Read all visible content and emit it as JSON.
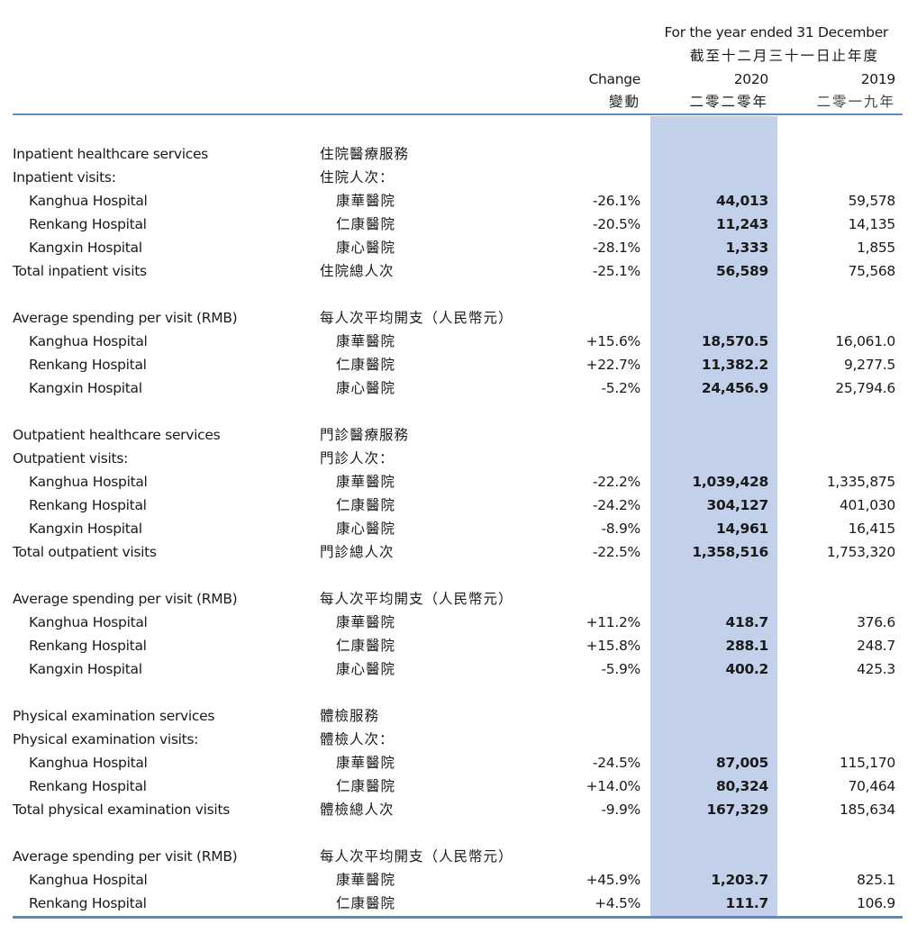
{
  "header": {
    "period_en": "For the year ended 31 December",
    "period_zh": "截至十二月三十一日止年度",
    "change_en": "Change",
    "change_zh": "變動",
    "year1_en": "2020",
    "year1_zh": "二零二零年",
    "year2_en": "2019",
    "year2_zh": "二零一九年"
  },
  "colors": {
    "highlight_column": "#c3d0ea",
    "rule": "#5b8ac4"
  },
  "rows": [
    {
      "en": "Inpatient healthcare services",
      "zh": "住院醫療服務",
      "type": "section"
    },
    {
      "en": "Inpatient visits:",
      "zh": "住院人次："
    },
    {
      "en": "Kanghua Hospital",
      "zh": "康華醫院",
      "change": "-26.1%",
      "y2020": "44,013",
      "y2019": "59,578",
      "indent": true
    },
    {
      "en": "Renkang Hospital",
      "zh": "仁康醫院",
      "change": "-20.5%",
      "y2020": "11,243",
      "y2019": "14,135",
      "indent": true
    },
    {
      "en": "Kangxin Hospital",
      "zh": "康心醫院",
      "change": "-28.1%",
      "y2020": "1,333",
      "y2019": "1,855",
      "indent": true
    },
    {
      "en": "Total inpatient visits",
      "zh": "住院總人次",
      "change": "-25.1%",
      "y2020": "56,589",
      "y2019": "75,568"
    },
    {
      "type": "blank"
    },
    {
      "en": "Average spending per visit (RMB)",
      "zh": "每人次平均開支（人民幣元）"
    },
    {
      "en": "Kanghua Hospital",
      "zh": "康華醫院",
      "change": "+15.6%",
      "y2020": "18,570.5",
      "y2019": "16,061.0",
      "indent": true
    },
    {
      "en": "Renkang Hospital",
      "zh": "仁康醫院",
      "change": "+22.7%",
      "y2020": "11,382.2",
      "y2019": "9,277.5",
      "indent": true
    },
    {
      "en": "Kangxin Hospital",
      "zh": "康心醫院",
      "change": "-5.2%",
      "y2020": "24,456.9",
      "y2019": "25,794.6",
      "indent": true
    },
    {
      "type": "blank"
    },
    {
      "en": "Outpatient healthcare services",
      "zh": "門診醫療服務",
      "type": "section"
    },
    {
      "en": "Outpatient visits:",
      "zh": "門診人次："
    },
    {
      "en": "Kanghua Hospital",
      "zh": "康華醫院",
      "change": "-22.2%",
      "y2020": "1,039,428",
      "y2019": "1,335,875",
      "indent": true
    },
    {
      "en": "Renkang Hospital",
      "zh": "仁康醫院",
      "change": "-24.2%",
      "y2020": "304,127",
      "y2019": "401,030",
      "indent": true
    },
    {
      "en": "Kangxin Hospital",
      "zh": "康心醫院",
      "change": "-8.9%",
      "y2020": "14,961",
      "y2019": "16,415",
      "indent": true
    },
    {
      "en": "Total outpatient visits",
      "zh": "門診總人次",
      "change": "-22.5%",
      "y2020": "1,358,516",
      "y2019": "1,753,320"
    },
    {
      "type": "blank"
    },
    {
      "en": "Average spending per visit (RMB)",
      "zh": "每人次平均開支（人民幣元）"
    },
    {
      "en": "Kanghua Hospital",
      "zh": "康華醫院",
      "change": "+11.2%",
      "y2020": "418.7",
      "y2019": "376.6",
      "indent": true
    },
    {
      "en": "Renkang Hospital",
      "zh": "仁康醫院",
      "change": "+15.8%",
      "y2020": "288.1",
      "y2019": "248.7",
      "indent": true
    },
    {
      "en": "Kangxin Hospital",
      "zh": "康心醫院",
      "change": "-5.9%",
      "y2020": "400.2",
      "y2019": "425.3",
      "indent": true
    },
    {
      "type": "blank"
    },
    {
      "en": "Physical examination services",
      "zh": "體檢服務",
      "type": "section"
    },
    {
      "en": "Physical examination visits:",
      "zh": "體檢人次："
    },
    {
      "en": "Kanghua Hospital",
      "zh": "康華醫院",
      "change": "-24.5%",
      "y2020": "87,005",
      "y2019": "115,170",
      "indent": true
    },
    {
      "en": "Renkang Hospital",
      "zh": "仁康醫院",
      "change": "+14.0%",
      "y2020": "80,324",
      "y2019": "70,464",
      "indent": true
    },
    {
      "en": "Total physical examination visits",
      "zh": "體檢總人次",
      "change": "-9.9%",
      "y2020": "167,329",
      "y2019": "185,634"
    },
    {
      "type": "blank"
    },
    {
      "en": "Average spending per visit (RMB)",
      "zh": "每人次平均開支（人民幣元）"
    },
    {
      "en": "Kanghua Hospital",
      "zh": "康華醫院",
      "change": "+45.9%",
      "y2020": "1,203.7",
      "y2019": "825.1",
      "indent": true
    },
    {
      "en": "Renkang Hospital",
      "zh": "仁康醫院",
      "change": "+4.5%",
      "y2020": "111.7",
      "y2019": "106.9",
      "indent": true
    }
  ]
}
